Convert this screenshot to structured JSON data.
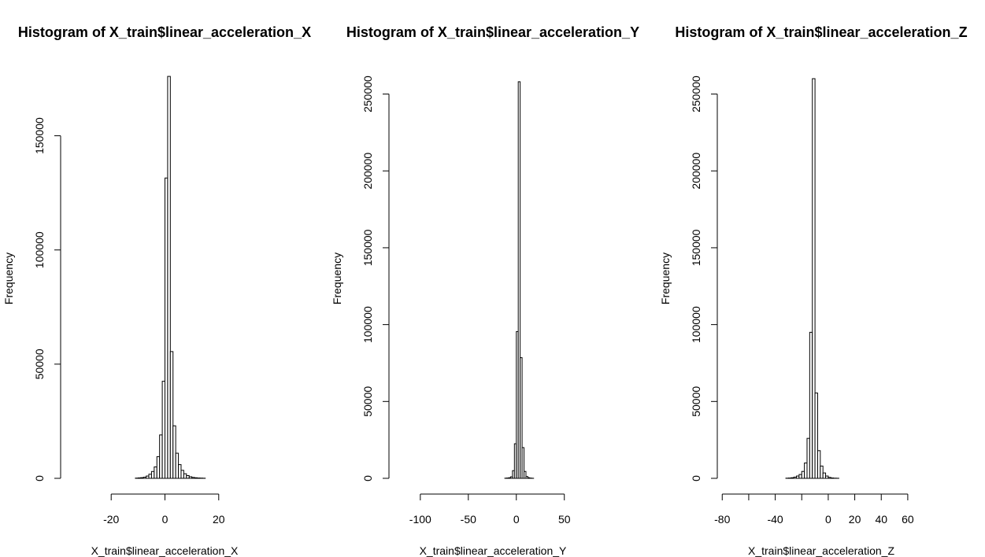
{
  "chart_data": [
    {
      "type": "bar",
      "subtype": "histogram",
      "title": "Histogram of X_train$linear_acceleration_X",
      "xlabel": "X_train$linear_acceleration_X",
      "ylabel": "Frequency",
      "xlim": [
        -35,
        35
      ],
      "ylim": [
        0,
        175000
      ],
      "xticks": [
        -20,
        0,
        20
      ],
      "yticks": [
        0,
        50000,
        100000,
        150000
      ],
      "bin_width": 1,
      "bins": [
        [
          -35,
          0
        ],
        [
          -34,
          0
        ],
        [
          -33,
          0
        ],
        [
          -32,
          0
        ],
        [
          -31,
          0
        ],
        [
          -30,
          0
        ],
        [
          -29,
          0
        ],
        [
          -28,
          0
        ],
        [
          -27,
          0
        ],
        [
          -26,
          0
        ],
        [
          -25,
          0
        ],
        [
          -24,
          0
        ],
        [
          -23,
          0
        ],
        [
          -22,
          0
        ],
        [
          -21,
          0
        ],
        [
          -20,
          0
        ],
        [
          -19,
          0
        ],
        [
          -18,
          0
        ],
        [
          -17,
          0
        ],
        [
          -16,
          0
        ],
        [
          -15,
          0
        ],
        [
          -14,
          0
        ],
        [
          -13,
          0
        ],
        [
          -12,
          0
        ],
        [
          -11,
          100
        ],
        [
          -10,
          200
        ],
        [
          -9,
          300
        ],
        [
          -8,
          500
        ],
        [
          -7,
          1000
        ],
        [
          -6,
          1800
        ],
        [
          -5,
          3000
        ],
        [
          -4,
          5000
        ],
        [
          -3,
          9500
        ],
        [
          -2,
          19000
        ],
        [
          -1,
          42500
        ],
        [
          0,
          131500
        ],
        [
          1,
          176000
        ],
        [
          2,
          55500
        ],
        [
          3,
          23000
        ],
        [
          4,
          11000
        ],
        [
          5,
          6000
        ],
        [
          6,
          3500
        ],
        [
          7,
          2000
        ],
        [
          8,
          1200
        ],
        [
          9,
          700
        ],
        [
          10,
          400
        ],
        [
          11,
          250
        ],
        [
          12,
          150
        ],
        [
          13,
          100
        ],
        [
          14,
          50
        ],
        [
          15,
          0
        ],
        [
          16,
          0
        ],
        [
          17,
          0
        ],
        [
          18,
          0
        ],
        [
          19,
          0
        ],
        [
          20,
          0
        ],
        [
          21,
          0
        ],
        [
          22,
          0
        ],
        [
          23,
          0
        ],
        [
          24,
          0
        ],
        [
          25,
          0
        ],
        [
          26,
          0
        ],
        [
          27,
          0
        ],
        [
          28,
          0
        ],
        [
          29,
          0
        ],
        [
          30,
          0
        ],
        [
          31,
          0
        ],
        [
          32,
          0
        ],
        [
          33,
          0
        ],
        [
          34,
          0
        ]
      ]
    },
    {
      "type": "bar",
      "subtype": "histogram",
      "title": "Histogram of X_train$linear_acceleration_Y",
      "xlabel": "X_train$linear_acceleration_Y",
      "ylabel": "Frequency",
      "xlim": [
        -122,
        74
      ],
      "ylim": [
        0,
        260000
      ],
      "xticks": [
        -100,
        -50,
        0,
        50
      ],
      "yticks": [
        0,
        50000,
        100000,
        150000,
        200000,
        250000
      ],
      "bin_width": 2,
      "bins": [
        [
          -122,
          0
        ],
        [
          -120,
          0
        ],
        [
          -118,
          0
        ],
        [
          -116,
          0
        ],
        [
          -114,
          0
        ],
        [
          -112,
          0
        ],
        [
          -110,
          0
        ],
        [
          -108,
          0
        ],
        [
          -106,
          0
        ],
        [
          -104,
          0
        ],
        [
          -102,
          0
        ],
        [
          -100,
          0
        ],
        [
          -98,
          0
        ],
        [
          -96,
          0
        ],
        [
          -94,
          0
        ],
        [
          -92,
          0
        ],
        [
          -90,
          0
        ],
        [
          -88,
          0
        ],
        [
          -86,
          0
        ],
        [
          -84,
          0
        ],
        [
          -82,
          0
        ],
        [
          -80,
          0
        ],
        [
          -78,
          0
        ],
        [
          -76,
          0
        ],
        [
          -74,
          0
        ],
        [
          -72,
          0
        ],
        [
          -70,
          0
        ],
        [
          -68,
          0
        ],
        [
          -66,
          0
        ],
        [
          -64,
          0
        ],
        [
          -62,
          0
        ],
        [
          -60,
          0
        ],
        [
          -58,
          0
        ],
        [
          -56,
          0
        ],
        [
          -54,
          0
        ],
        [
          -52,
          0
        ],
        [
          -50,
          0
        ],
        [
          -48,
          0
        ],
        [
          -46,
          0
        ],
        [
          -44,
          0
        ],
        [
          -42,
          0
        ],
        [
          -40,
          0
        ],
        [
          -38,
          0
        ],
        [
          -36,
          0
        ],
        [
          -34,
          0
        ],
        [
          -32,
          0
        ],
        [
          -30,
          0
        ],
        [
          -28,
          0
        ],
        [
          -26,
          0
        ],
        [
          -24,
          0
        ],
        [
          -22,
          0
        ],
        [
          -20,
          0
        ],
        [
          -18,
          0
        ],
        [
          -16,
          0
        ],
        [
          -14,
          0
        ],
        [
          -12,
          100
        ],
        [
          -10,
          200
        ],
        [
          -8,
          400
        ],
        [
          -6,
          1000
        ],
        [
          -4,
          5000
        ],
        [
          -2,
          22500
        ],
        [
          0,
          95500
        ],
        [
          2,
          258000
        ],
        [
          4,
          78500
        ],
        [
          6,
          20000
        ],
        [
          8,
          4500
        ],
        [
          10,
          1200
        ],
        [
          12,
          400
        ],
        [
          14,
          150
        ],
        [
          16,
          50
        ],
        [
          18,
          0
        ],
        [
          20,
          0
        ],
        [
          22,
          0
        ],
        [
          24,
          0
        ],
        [
          26,
          0
        ],
        [
          28,
          0
        ],
        [
          30,
          0
        ],
        [
          32,
          0
        ],
        [
          34,
          0
        ],
        [
          36,
          0
        ],
        [
          38,
          0
        ],
        [
          40,
          0
        ],
        [
          42,
          0
        ],
        [
          44,
          0
        ],
        [
          46,
          0
        ],
        [
          48,
          0
        ],
        [
          50,
          0
        ],
        [
          52,
          0
        ],
        [
          54,
          0
        ],
        [
          56,
          0
        ],
        [
          58,
          0
        ],
        [
          60,
          0
        ],
        [
          62,
          0
        ],
        [
          64,
          0
        ],
        [
          66,
          0
        ],
        [
          68,
          0
        ],
        [
          70,
          0
        ],
        [
          72,
          0
        ]
      ]
    },
    {
      "type": "bar",
      "subtype": "histogram",
      "title": "Histogram of X_train$linear_acceleration_Z",
      "xlabel": "X_train$linear_acceleration_Z",
      "ylabel": "Frequency",
      "xlim": [
        -76,
        66
      ],
      "ylim": [
        0,
        260000
      ],
      "xticks": [
        -80,
        -60,
        -40,
        -20,
        0,
        20,
        40,
        60
      ],
      "xtick_labels": [
        "-80",
        "",
        "-40",
        "",
        "0",
        "20",
        "40",
        "60"
      ],
      "yticks": [
        0,
        50000,
        100000,
        150000,
        200000,
        250000
      ],
      "bin_width": 2,
      "bins": [
        [
          -76,
          0
        ],
        [
          -74,
          0
        ],
        [
          -72,
          0
        ],
        [
          -70,
          0
        ],
        [
          -68,
          0
        ],
        [
          -66,
          0
        ],
        [
          -64,
          0
        ],
        [
          -62,
          0
        ],
        [
          -60,
          0
        ],
        [
          -58,
          0
        ],
        [
          -56,
          0
        ],
        [
          -54,
          0
        ],
        [
          -52,
          0
        ],
        [
          -50,
          0
        ],
        [
          -48,
          0
        ],
        [
          -46,
          0
        ],
        [
          -44,
          0
        ],
        [
          -42,
          0
        ],
        [
          -40,
          0
        ],
        [
          -38,
          0
        ],
        [
          -36,
          0
        ],
        [
          -34,
          0
        ],
        [
          -32,
          100
        ],
        [
          -30,
          200
        ],
        [
          -28,
          400
        ],
        [
          -26,
          800
        ],
        [
          -24,
          1500
        ],
        [
          -22,
          2500
        ],
        [
          -20,
          4500
        ],
        [
          -18,
          10000
        ],
        [
          -16,
          26000
        ],
        [
          -14,
          95000
        ],
        [
          -12,
          260000
        ],
        [
          -10,
          55500
        ],
        [
          -8,
          18000
        ],
        [
          -6,
          8000
        ],
        [
          -4,
          3500
        ],
        [
          -2,
          1500
        ],
        [
          0,
          600
        ],
        [
          2,
          250
        ],
        [
          4,
          100
        ],
        [
          6,
          50
        ],
        [
          8,
          0
        ],
        [
          10,
          0
        ],
        [
          12,
          0
        ],
        [
          14,
          0
        ],
        [
          16,
          0
        ],
        [
          18,
          0
        ],
        [
          20,
          0
        ],
        [
          22,
          0
        ],
        [
          24,
          0
        ],
        [
          26,
          0
        ],
        [
          28,
          0
        ],
        [
          30,
          0
        ],
        [
          32,
          0
        ],
        [
          34,
          0
        ],
        [
          36,
          0
        ],
        [
          38,
          0
        ],
        [
          40,
          0
        ],
        [
          42,
          0
        ],
        [
          44,
          0
        ],
        [
          46,
          0
        ],
        [
          48,
          0
        ],
        [
          50,
          0
        ],
        [
          52,
          0
        ],
        [
          54,
          0
        ],
        [
          56,
          0
        ],
        [
          58,
          0
        ],
        [
          60,
          0
        ],
        [
          62,
          0
        ],
        [
          64,
          0
        ]
      ]
    }
  ]
}
